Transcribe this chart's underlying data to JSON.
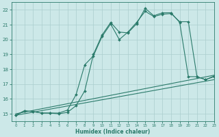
{
  "xlabel": "Humidex (Indice chaleur)",
  "bg_color": "#cce8e8",
  "grid_color": "#aacece",
  "line_color": "#2a7a6a",
  "xlim": [
    -0.5,
    23
  ],
  "ylim": [
    14.5,
    22.5
  ],
  "xticks": [
    0,
    1,
    2,
    3,
    4,
    5,
    6,
    7,
    8,
    9,
    10,
    11,
    12,
    13,
    14,
    15,
    16,
    17,
    18,
    19,
    20,
    21,
    22,
    23
  ],
  "yticks": [
    15,
    16,
    17,
    18,
    19,
    20,
    21,
    22
  ],
  "line1_x": [
    0,
    1,
    2,
    3,
    4,
    5,
    6,
    7,
    8,
    9,
    10,
    11,
    12,
    13,
    14,
    15,
    16,
    17,
    18,
    19,
    20,
    21,
    22,
    23
  ],
  "line1_y": [
    14.9,
    15.2,
    15.15,
    15.05,
    15.05,
    15.05,
    15.25,
    16.3,
    18.3,
    18.9,
    20.2,
    21.05,
    20.0,
    20.5,
    21.15,
    21.9,
    21.55,
    21.7,
    21.75,
    21.2,
    21.2,
    17.5,
    17.3,
    17.5
  ],
  "line2_x": [
    0,
    1,
    2,
    3,
    4,
    5,
    6,
    7,
    8,
    9,
    10,
    11,
    12,
    13,
    14,
    15,
    16,
    17,
    18,
    19,
    20,
    21,
    22,
    23
  ],
  "line2_y": [
    14.9,
    15.2,
    15.15,
    15.05,
    15.05,
    15.0,
    15.1,
    15.55,
    16.55,
    19.0,
    20.3,
    21.15,
    20.5,
    20.45,
    21.05,
    22.1,
    21.6,
    21.8,
    21.8,
    21.15,
    17.5,
    17.5,
    17.3,
    17.55
  ],
  "line3_x": [
    0,
    23
  ],
  "line3_y": [
    15.0,
    17.6
  ],
  "line4_x": [
    0,
    23
  ],
  "line4_y": [
    14.9,
    17.3
  ]
}
